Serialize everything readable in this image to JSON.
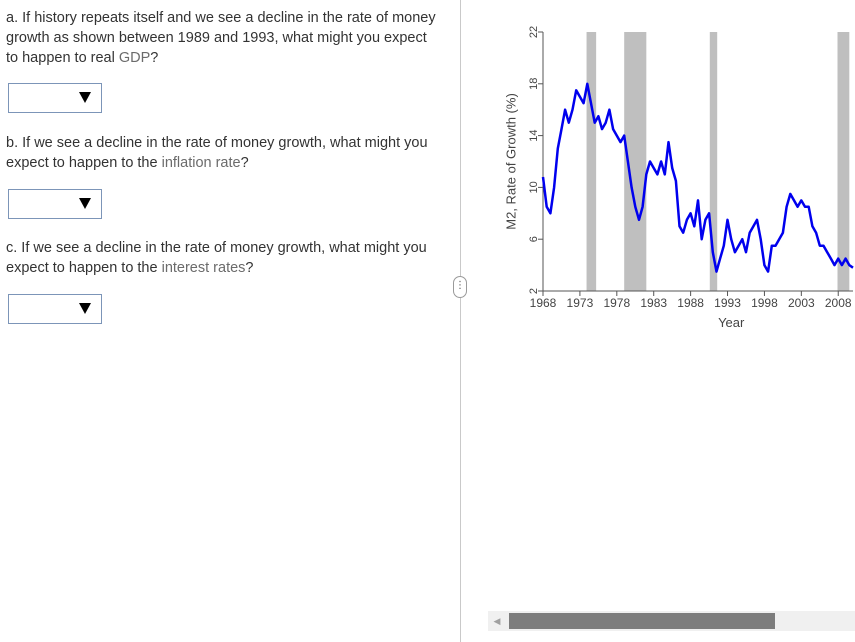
{
  "questions": {
    "a": {
      "pre": "a. If history repeats itself and we see a decline in the rate of money growth as shown between 1989 and 1993, what might you expect to happen to real ",
      "highlight": "GDP",
      "post": "?",
      "dropdown_value": ""
    },
    "b": {
      "pre": "b. If we see a decline in the rate of money growth, what might you expect to happen to the ",
      "highlight": "inflation rate",
      "post": "?",
      "dropdown_value": ""
    },
    "c": {
      "pre": "c. If we see a decline in the rate of money growth, what might you expect to happen to the ",
      "highlight": "interest rates",
      "post": "?",
      "dropdown_value": ""
    }
  },
  "divider_handle_label": "⋮",
  "chart_data": {
    "type": "line",
    "ylabel": "M2, Rate of Growth (%)",
    "xlabel": "Year",
    "yticks": [
      2,
      6,
      10,
      14,
      18,
      22
    ],
    "ylim": [
      2,
      22
    ],
    "xticks": [
      1968,
      1973,
      1978,
      1983,
      1988,
      1993,
      1998,
      2003,
      2008
    ],
    "xlim": [
      1968,
      2010
    ],
    "color": "#0000ee",
    "recession_color": "#bfbfbf",
    "recessions": [
      [
        1973.9,
        1975.2
      ],
      [
        1979.0,
        1982.0
      ],
      [
        1990.6,
        1991.6
      ],
      [
        2007.9,
        2009.5
      ]
    ],
    "series": [
      {
        "name": "M2 growth",
        "x": [
          1968.0,
          1968.5,
          1969.0,
          1969.5,
          1970.0,
          1970.5,
          1971.0,
          1971.5,
          1972.0,
          1972.5,
          1973.0,
          1973.5,
          1974.0,
          1974.5,
          1975.0,
          1975.5,
          1976.0,
          1976.5,
          1977.0,
          1977.5,
          1978.0,
          1978.5,
          1979.0,
          1979.5,
          1980.0,
          1980.5,
          1981.0,
          1981.5,
          1982.0,
          1982.5,
          1983.0,
          1983.5,
          1984.0,
          1984.5,
          1985.0,
          1985.5,
          1986.0,
          1986.5,
          1987.0,
          1987.5,
          1988.0,
          1988.5,
          1989.0,
          1989.5,
          1990.0,
          1990.5,
          1991.0,
          1991.5,
          1992.0,
          1992.5,
          1993.0,
          1993.5,
          1994.0,
          1994.5,
          1995.0,
          1995.5,
          1996.0,
          1996.5,
          1997.0,
          1997.5,
          1998.0,
          1998.5,
          1999.0,
          1999.5,
          2000.0,
          2000.5,
          2001.0,
          2001.5,
          2002.0,
          2002.5,
          2003.0,
          2003.5,
          2004.0,
          2004.5,
          2005.0,
          2005.5,
          2006.0,
          2006.5,
          2007.0,
          2007.5,
          2008.0,
          2008.5,
          2009.0,
          2009.5,
          2010.0
        ],
        "values": [
          10.8,
          8.5,
          8.0,
          10.0,
          13.0,
          14.5,
          16.0,
          15.0,
          16.0,
          17.5,
          17.0,
          16.5,
          18.0,
          16.5,
          15.0,
          15.5,
          14.5,
          15.0,
          16.0,
          14.5,
          14.0,
          13.5,
          14.0,
          12.0,
          10.0,
          8.5,
          7.5,
          8.5,
          11.0,
          12.0,
          11.5,
          11.0,
          12.0,
          11.0,
          13.5,
          11.5,
          10.5,
          7.0,
          6.5,
          7.5,
          8.0,
          7.0,
          9.0,
          6.0,
          7.5,
          8.0,
          5.0,
          3.5,
          4.5,
          5.5,
          7.5,
          6.0,
          5.0,
          5.5,
          6.0,
          5.0,
          6.5,
          7.0,
          7.5,
          6.0,
          4.0,
          3.5,
          5.5,
          5.5,
          6.0,
          6.5,
          8.5,
          9.5,
          9.0,
          8.5,
          9.0,
          8.5,
          8.5,
          7.0,
          6.5,
          5.5,
          5.5,
          5.0,
          4.5,
          4.0,
          4.5,
          4.0,
          4.5,
          4.0,
          3.8
        ]
      }
    ]
  }
}
